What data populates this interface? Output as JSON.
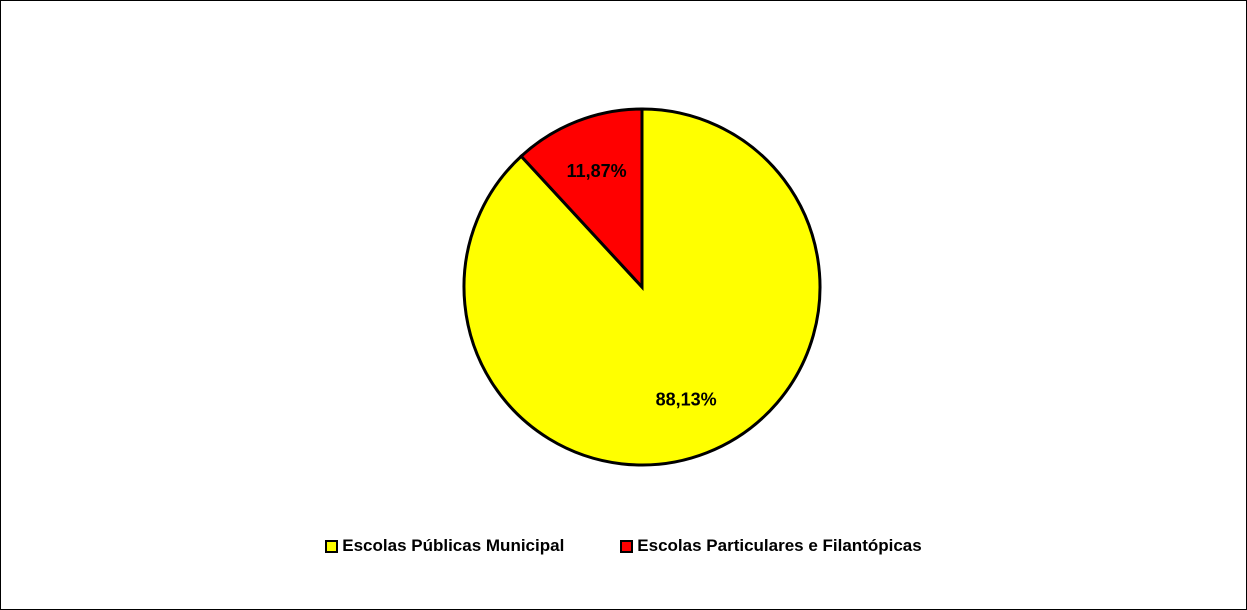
{
  "chart_data": {
    "type": "pie",
    "title": "",
    "legend_placement": "bottom",
    "start": "top, clockwise",
    "slices": [
      {
        "name": "Escolas Públicas Municipal",
        "value": 88.13,
        "label": "88,13%",
        "color": "#FFFF00"
      },
      {
        "name": "Escolas Particulares e Filantópicas",
        "value": 11.87,
        "label": "11,87%",
        "color": "#FF0000"
      }
    ]
  },
  "legend": {
    "items": [
      {
        "label": "Escolas Públicas Municipal",
        "color": "#FFFF00"
      },
      {
        "label": "Escolas Particulares e Filantópicas",
        "color": "#FF0000"
      }
    ]
  }
}
